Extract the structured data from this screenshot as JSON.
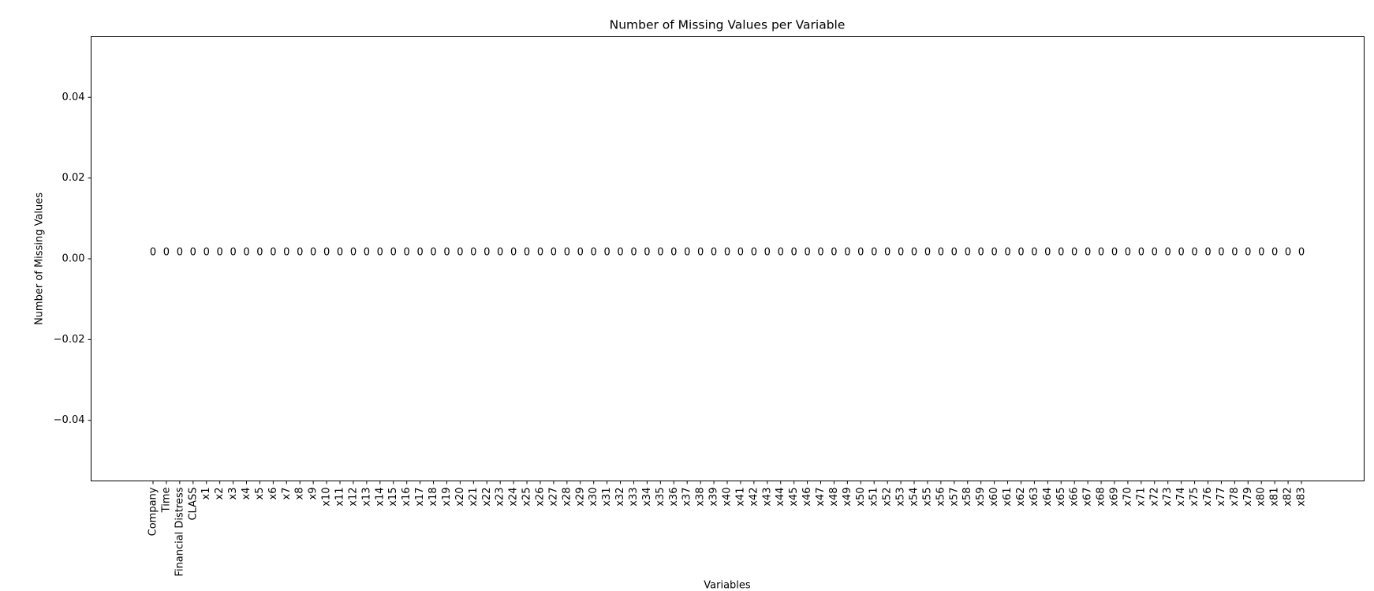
{
  "chart_data": {
    "type": "bar",
    "title": "Number of Missing Values per Variable",
    "x_label": "Variables",
    "y_label": "Number of Missing Values",
    "categories": [
      "Company",
      "Time",
      "Financial Distress",
      "CLASS",
      "x1",
      "x2",
      "x3",
      "x4",
      "x5",
      "x6",
      "x7",
      "x8",
      "x9",
      "x10",
      "x11",
      "x12",
      "x13",
      "x14",
      "x15",
      "x16",
      "x17",
      "x18",
      "x19",
      "x20",
      "x21",
      "x22",
      "x23",
      "x24",
      "x25",
      "x26",
      "x27",
      "x28",
      "x29",
      "x30",
      "x31",
      "x32",
      "x33",
      "x34",
      "x35",
      "x36",
      "x37",
      "x38",
      "x39",
      "x40",
      "x41",
      "x42",
      "x43",
      "x44",
      "x45",
      "x46",
      "x47",
      "x48",
      "x49",
      "x50",
      "x51",
      "x52",
      "x53",
      "x54",
      "x55",
      "x56",
      "x57",
      "x58",
      "x59",
      "x60",
      "x61",
      "x62",
      "x63",
      "x64",
      "x65",
      "x66",
      "x67",
      "x68",
      "x69",
      "x70",
      "x71",
      "x72",
      "x73",
      "x74",
      "x75",
      "x76",
      "x77",
      "x78",
      "x79",
      "x80",
      "x81",
      "x82",
      "x83"
    ],
    "values": [
      0,
      0,
      0,
      0,
      0,
      0,
      0,
      0,
      0,
      0,
      0,
      0,
      0,
      0,
      0,
      0,
      0,
      0,
      0,
      0,
      0,
      0,
      0,
      0,
      0,
      0,
      0,
      0,
      0,
      0,
      0,
      0,
      0,
      0,
      0,
      0,
      0,
      0,
      0,
      0,
      0,
      0,
      0,
      0,
      0,
      0,
      0,
      0,
      0,
      0,
      0,
      0,
      0,
      0,
      0,
      0,
      0,
      0,
      0,
      0,
      0,
      0,
      0,
      0,
      0,
      0,
      0,
      0,
      0,
      0,
      0,
      0,
      0,
      0,
      0,
      0,
      0,
      0,
      0,
      0,
      0,
      0,
      0,
      0,
      0,
      0,
      0
    ],
    "color": "#1f77b4",
    "ylim": [
      -0.055,
      0.055
    ],
    "yticks": [
      {
        "value": -0.04,
        "label": "−0.04"
      },
      {
        "value": -0.02,
        "label": "−0.02"
      },
      {
        "value": 0,
        "label": "0.00"
      },
      0.02,
      0.04
    ]
  }
}
